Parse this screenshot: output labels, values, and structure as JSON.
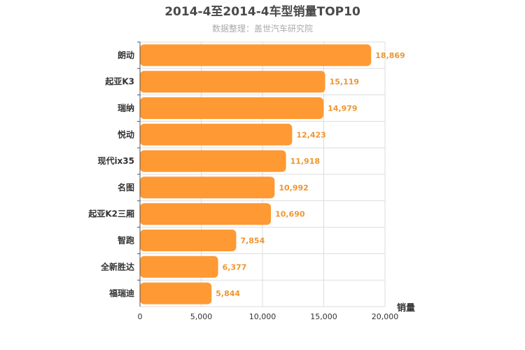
{
  "chart_data": {
    "type": "bar",
    "orientation": "horizontal",
    "title": "2014-4至2014-4车型销量TOP10",
    "subtitle": "数据整理：盖世汽车研究院",
    "xlabel": "销量",
    "ylabel": "",
    "categories": [
      "朗动",
      "起亚K3",
      "瑞纳",
      "悦动",
      "现代ix35",
      "名图",
      "起亚K2三厢",
      "智跑",
      "全新胜达",
      "福瑞迪"
    ],
    "values": [
      18869,
      15119,
      14979,
      12423,
      11918,
      10992,
      10690,
      7854,
      6377,
      5844
    ],
    "value_labels": [
      "18,869",
      "15,119",
      "14,979",
      "12,423",
      "11,918",
      "10,992",
      "10,690",
      "7,854",
      "6,377",
      "5,844"
    ],
    "xlim": [
      0,
      20000
    ],
    "xticks": [
      0,
      5000,
      10000,
      15000,
      20000
    ],
    "xtick_labels": [
      "0",
      "5,000",
      "10,000",
      "15,000",
      "20,000"
    ],
    "grid": true,
    "legend": "none",
    "colors": {
      "bar": "#ff9933",
      "value_label": "#f0952f",
      "grid": "#dddddd",
      "axis": "#555555"
    }
  }
}
